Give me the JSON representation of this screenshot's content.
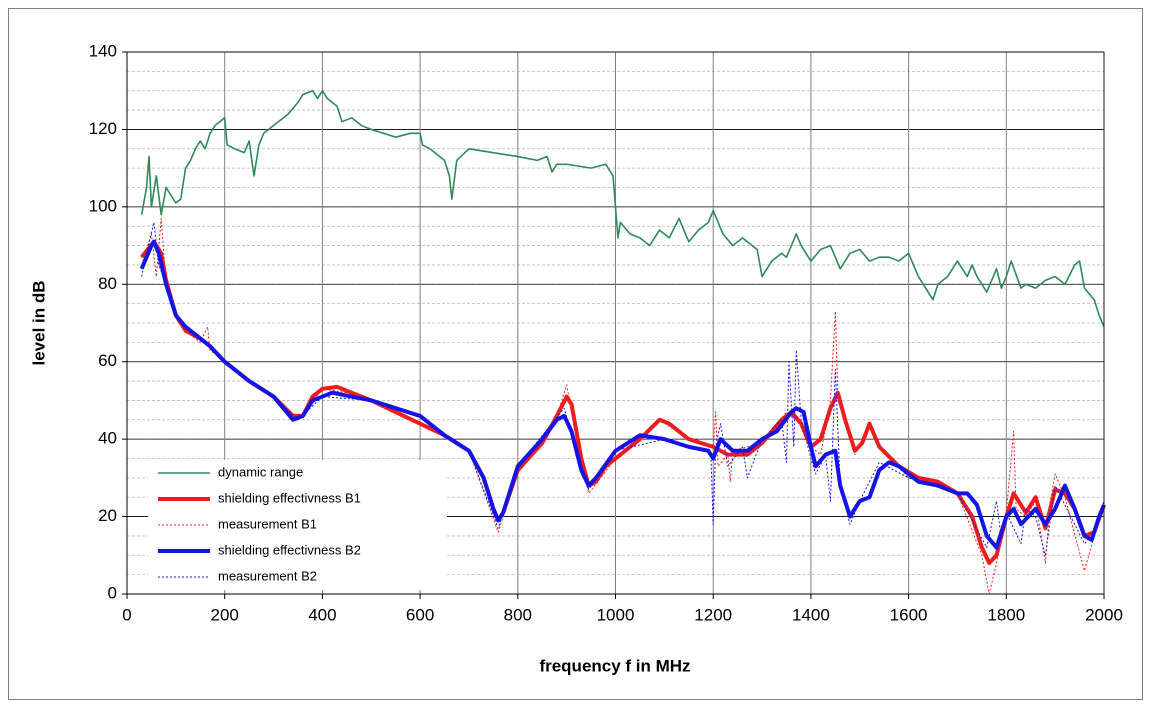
{
  "chart_data": {
    "type": "line",
    "x_label": "frequency f in MHz",
    "y_label": "level in dB",
    "xlim": [
      0,
      2000
    ],
    "xticks": [
      0,
      200,
      400,
      600,
      800,
      1000,
      1200,
      1400,
      1600,
      1800,
      2000
    ],
    "ylim": [
      0,
      140
    ],
    "yticks": [
      0,
      20,
      40,
      60,
      80,
      100,
      120,
      140
    ],
    "grid": true,
    "y_minor_step": 5,
    "legend": "lower-left",
    "series": [
      {
        "name": "dynamic range",
        "color": "#2e8b57",
        "width": 1.6,
        "dash": false,
        "x": [
          30,
          40,
          45,
          50,
          60,
          70,
          80,
          90,
          100,
          110,
          120,
          130,
          140,
          150,
          160,
          170,
          180,
          190,
          200,
          205,
          220,
          240,
          250,
          260,
          270,
          280,
          300,
          330,
          350,
          360,
          380,
          390,
          400,
          410,
          430,
          440,
          460,
          480,
          500,
          550,
          580,
          600,
          605,
          620,
          640,
          650,
          660,
          665,
          675,
          700,
          750,
          800,
          840,
          860,
          870,
          880,
          900,
          950,
          980,
          995,
          1000,
          1005,
          1010,
          1030,
          1050,
          1070,
          1090,
          1110,
          1130,
          1150,
          1170,
          1190,
          1200,
          1220,
          1240,
          1260,
          1290,
          1300,
          1320,
          1340,
          1350,
          1370,
          1380,
          1400,
          1420,
          1440,
          1460,
          1480,
          1500,
          1520,
          1540,
          1560,
          1580,
          1600,
          1620,
          1640,
          1650,
          1660,
          1680,
          1700,
          1720,
          1730,
          1740,
          1760,
          1780,
          1790,
          1800,
          1810,
          1830,
          1840,
          1860,
          1880,
          1900,
          1920,
          1940,
          1950,
          1960,
          1980,
          1990,
          2000
        ],
        "values": [
          98,
          105,
          113,
          100,
          108,
          98,
          105,
          103,
          101,
          102,
          110,
          112,
          115,
          117,
          115,
          119,
          121,
          122,
          123,
          116,
          115,
          114,
          117,
          108,
          116,
          119,
          121,
          124,
          127,
          129,
          130,
          128,
          130,
          128,
          126,
          122,
          123,
          121,
          120,
          118,
          119,
          119,
          116,
          115,
          113,
          112,
          108,
          102,
          112,
          115,
          114,
          113,
          112,
          113,
          109,
          111,
          111,
          110,
          111,
          108,
          100,
          92,
          96,
          93,
          92,
          90,
          94,
          92,
          97,
          91,
          94,
          96,
          99,
          93,
          90,
          92,
          89,
          82,
          86,
          88,
          87,
          93,
          90,
          86,
          89,
          90,
          84,
          88,
          89,
          86,
          87,
          87,
          86,
          88,
          82,
          78,
          76,
          80,
          82,
          86,
          82,
          85,
          82,
          78,
          84,
          79,
          82,
          86,
          79,
          80,
          79,
          81,
          82,
          80,
          85,
          86,
          79,
          76,
          72,
          69
        ]
      },
      {
        "name": "shielding effectivness B1",
        "color": "#ee1c1c",
        "width": 4,
        "dash": false,
        "x": [
          30,
          55,
          70,
          80,
          100,
          120,
          150,
          170,
          200,
          250,
          300,
          340,
          360,
          380,
          400,
          430,
          460,
          500,
          550,
          600,
          650,
          700,
          730,
          750,
          760,
          770,
          800,
          850,
          880,
          900,
          910,
          930,
          945,
          960,
          980,
          1000,
          1050,
          1090,
          1110,
          1150,
          1200,
          1230,
          1270,
          1300,
          1340,
          1360,
          1380,
          1400,
          1420,
          1440,
          1455,
          1470,
          1490,
          1505,
          1520,
          1540,
          1580,
          1620,
          1660,
          1700,
          1730,
          1750,
          1765,
          1780,
          1800,
          1815,
          1840,
          1860,
          1880,
          1900,
          1920,
          1940,
          1960,
          1980,
          2000
        ],
        "values": [
          87,
          91,
          88,
          81,
          72,
          68,
          66,
          64,
          60,
          55,
          51,
          46,
          46,
          51,
          53,
          53.5,
          52,
          50,
          47,
          44,
          41,
          37,
          30,
          22,
          19,
          21,
          32,
          39,
          46,
          51,
          49,
          35,
          28,
          29,
          33,
          35,
          40,
          45,
          44,
          40,
          38,
          36,
          36,
          39,
          45,
          47,
          44,
          38,
          40,
          48,
          52,
          45,
          37,
          39,
          44,
          38,
          33,
          30,
          29,
          26,
          20,
          12,
          8,
          10,
          20,
          26,
          21,
          25,
          17,
          27,
          26,
          22,
          15,
          16,
          23
        ]
      },
      {
        "name": "measurement B1",
        "color": "#ee1c1c",
        "width": 1,
        "dash": true,
        "x": [
          30,
          50,
          60,
          70,
          80,
          100,
          120,
          150,
          165,
          170,
          200,
          250,
          300,
          350,
          400,
          450,
          500,
          600,
          700,
          760,
          800,
          880,
          900,
          930,
          945,
          1000,
          1090,
          1150,
          1200,
          1205,
          1210,
          1230,
          1235,
          1240,
          1300,
          1350,
          1380,
          1400,
          1420,
          1440,
          1450,
          1455,
          1470,
          1490,
          1520,
          1540,
          1600,
          1700,
          1750,
          1765,
          1780,
          1800,
          1815,
          1820,
          1840,
          1860,
          1880,
          1890,
          1900,
          1920,
          1960,
          1980,
          2000
        ],
        "values": [
          85,
          93,
          82,
          97,
          80,
          72,
          68,
          65,
          69,
          63,
          60,
          55,
          51,
          45,
          53,
          52,
          50,
          44,
          37,
          16,
          32,
          46,
          54,
          34,
          26,
          35,
          45,
          40,
          38,
          47,
          33,
          36,
          29,
          37,
          39,
          47,
          44,
          38,
          36,
          50,
          73,
          52,
          46,
          36,
          44,
          38,
          30,
          26,
          10,
          0,
          8,
          21,
          42,
          22,
          20,
          24,
          8,
          24,
          31,
          25,
          6,
          15,
          23
        ]
      },
      {
        "name": "shielding effectivness B2",
        "color": "#1414e6",
        "width": 4,
        "dash": false,
        "x": [
          30,
          50,
          55,
          65,
          80,
          100,
          120,
          150,
          170,
          200,
          250,
          300,
          340,
          360,
          380,
          400,
          420,
          460,
          500,
          550,
          600,
          650,
          700,
          730,
          750,
          760,
          770,
          800,
          850,
          880,
          895,
          910,
          930,
          945,
          960,
          1000,
          1050,
          1100,
          1150,
          1190,
          1200,
          1215,
          1240,
          1270,
          1300,
          1330,
          1360,
          1370,
          1385,
          1400,
          1410,
          1430,
          1450,
          1460,
          1480,
          1500,
          1520,
          1540,
          1560,
          1580,
          1620,
          1660,
          1700,
          1720,
          1740,
          1760,
          1780,
          1800,
          1815,
          1830,
          1860,
          1880,
          1900,
          1920,
          1940,
          1960,
          1975,
          1990,
          2000
        ],
        "values": [
          84,
          90,
          91,
          88,
          80,
          72,
          69,
          66,
          64,
          60,
          55,
          51,
          45,
          46,
          50,
          51,
          52,
          51,
          50,
          48,
          46,
          41,
          37,
          30,
          22,
          19,
          21,
          33,
          40,
          45,
          46,
          42,
          32,
          28,
          30,
          37,
          41,
          40,
          38,
          37,
          35,
          40,
          37,
          37,
          40,
          42,
          47,
          48,
          47,
          38,
          33,
          36,
          37,
          28,
          20,
          24,
          25,
          32,
          34,
          33,
          29,
          28,
          26,
          26,
          23,
          15,
          12,
          20,
          22,
          18,
          22,
          18,
          22,
          28,
          22,
          15,
          14,
          20,
          23
        ]
      },
      {
        "name": "measurement B2",
        "color": "#1414e6",
        "width": 1,
        "dash": true,
        "x": [
          30,
          40,
          55,
          65,
          80,
          100,
          115,
          150,
          200,
          300,
          350,
          400,
          500,
          600,
          700,
          760,
          800,
          895,
          930,
          945,
          1000,
          1100,
          1150,
          1195,
          1200,
          1205,
          1215,
          1230,
          1260,
          1270,
          1300,
          1340,
          1350,
          1355,
          1365,
          1370,
          1380,
          1400,
          1410,
          1430,
          1440,
          1450,
          1460,
          1480,
          1500,
          1540,
          1600,
          1700,
          1760,
          1780,
          1790,
          1800,
          1830,
          1840,
          1860,
          1880,
          1900,
          1960,
          1975,
          2000
        ],
        "values": [
          82,
          88,
          96,
          85,
          80,
          72,
          70,
          66,
          60,
          51,
          45,
          51,
          50,
          46,
          37,
          17,
          33,
          48,
          32,
          27,
          37,
          40,
          38,
          37,
          18,
          38,
          44,
          33,
          38,
          30,
          40,
          45,
          34,
          60,
          38,
          63,
          45,
          35,
          31,
          36,
          24,
          58,
          28,
          18,
          24,
          34,
          30,
          26,
          12,
          24,
          14,
          21,
          13,
          22,
          20,
          10,
          28,
          13,
          15,
          24
        ]
      }
    ]
  }
}
